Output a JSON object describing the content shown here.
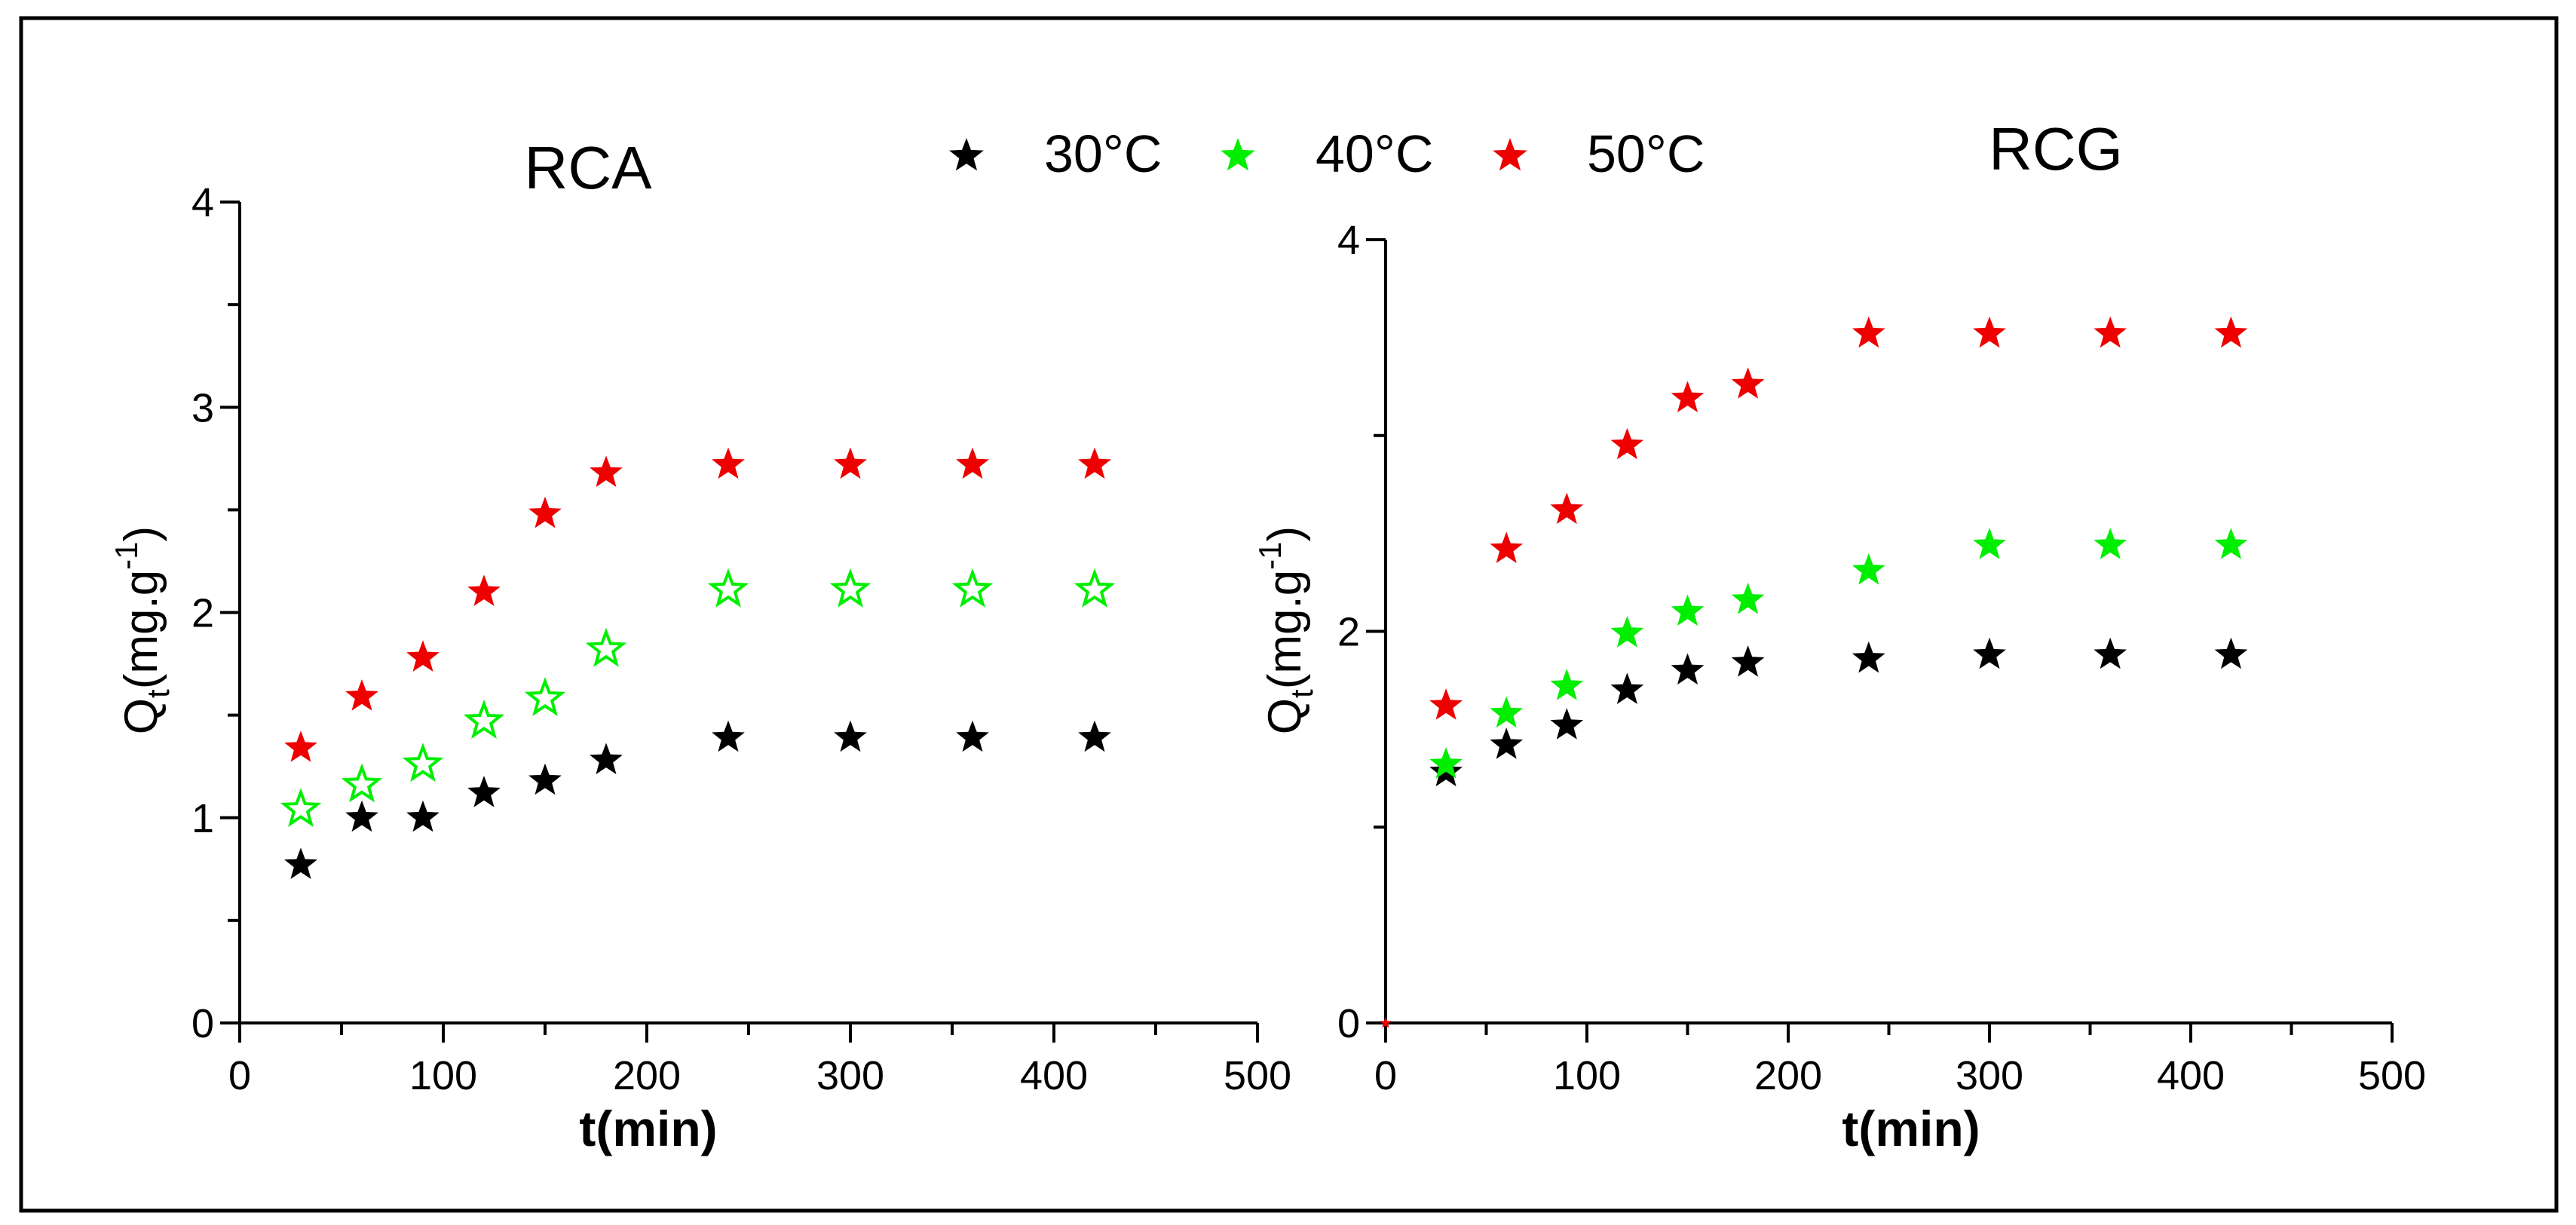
{
  "legend": {
    "items": [
      {
        "label": "30°C",
        "color": "#000000"
      },
      {
        "label": "40°C",
        "color": "#00ee00"
      },
      {
        "label": "50°C",
        "color": "#ee0000"
      }
    ]
  },
  "chart_data": [
    {
      "type": "scatter",
      "title": "RCA",
      "xlabel": "t(min)",
      "ylabel": {
        "base": "Q",
        "sub": "t",
        "unit": "(mg.g",
        "sup": "-1",
        "close": ")"
      },
      "xlim": [
        0,
        500
      ],
      "ylim": [
        0,
        4
      ],
      "xticks": [
        0,
        100,
        200,
        300,
        400,
        500
      ],
      "yticks": [
        0,
        1,
        2,
        3,
        4
      ],
      "series": [
        {
          "name": "30°C",
          "color": "#000000",
          "marker": "filled-star",
          "x": [
            30,
            60,
            90,
            120,
            150,
            180,
            240,
            300,
            360,
            420
          ],
          "y": [
            0.77,
            1.0,
            1.0,
            1.12,
            1.18,
            1.28,
            1.39,
            1.39,
            1.39,
            1.39
          ]
        },
        {
          "name": "40°C",
          "color": "#00ee00",
          "marker": "open-star",
          "x": [
            30,
            60,
            90,
            120,
            150,
            180,
            240,
            300,
            360,
            420
          ],
          "y": [
            1.04,
            1.16,
            1.26,
            1.47,
            1.58,
            1.82,
            2.11,
            2.11,
            2.11,
            2.11
          ]
        },
        {
          "name": "50°C",
          "color": "#ee0000",
          "marker": "filled-star",
          "x": [
            30,
            60,
            90,
            120,
            150,
            180,
            240,
            300,
            360,
            420
          ],
          "y": [
            1.34,
            1.59,
            1.78,
            2.1,
            2.48,
            2.68,
            2.72,
            2.72,
            2.72,
            2.72
          ]
        }
      ]
    },
    {
      "type": "scatter",
      "title": "RCG",
      "xlabel": "t(min)",
      "ylabel": {
        "base": "Q",
        "sub": "t",
        "unit": "(mg.g",
        "sup": "-1",
        "close": ")"
      },
      "xlim": [
        0,
        500
      ],
      "ylim": [
        0,
        4
      ],
      "xticks": [
        0,
        100,
        200,
        300,
        400,
        500
      ],
      "yticks": [
        0,
        2,
        4
      ],
      "series": [
        {
          "name": "30°C",
          "color": "#000000",
          "marker": "filled-star",
          "x": [
            30,
            60,
            90,
            120,
            150,
            180,
            240,
            300,
            360,
            420
          ],
          "y": [
            1.28,
            1.42,
            1.52,
            1.7,
            1.8,
            1.84,
            1.86,
            1.88,
            1.88,
            1.88
          ]
        },
        {
          "name": "40°C",
          "color": "#00ee00",
          "marker": "filled-star",
          "x": [
            30,
            60,
            90,
            120,
            150,
            180,
            240,
            300,
            360,
            420
          ],
          "y": [
            1.32,
            1.58,
            1.72,
            1.99,
            2.1,
            2.16,
            2.31,
            2.44,
            2.44,
            2.44
          ]
        },
        {
          "name": "50°C",
          "color": "#ee0000",
          "marker": "filled-star",
          "x": [
            0,
            30,
            60,
            90,
            120,
            150,
            180,
            240,
            300,
            360,
            420
          ],
          "y": [
            0.0,
            1.62,
            2.42,
            2.62,
            2.95,
            3.19,
            3.26,
            3.52,
            3.52,
            3.52,
            3.52
          ]
        }
      ]
    }
  ]
}
